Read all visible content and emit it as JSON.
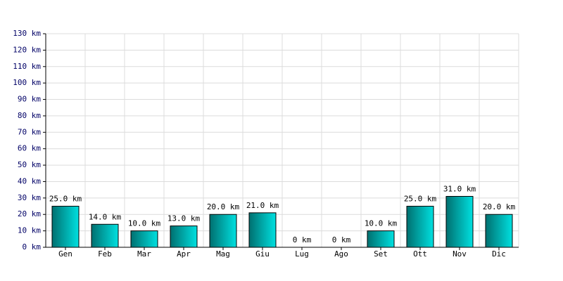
{
  "chart_data": {
    "type": "bar",
    "categories": [
      "Gen",
      "Feb",
      "Mar",
      "Apr",
      "Mag",
      "Giu",
      "Lug",
      "Ago",
      "Set",
      "Ott",
      "Nov",
      "Dic"
    ],
    "values": [
      25,
      14,
      10,
      13,
      20,
      21,
      0,
      0,
      10,
      25,
      31,
      20
    ],
    "value_labels": [
      "25.0 km",
      "14.0 km",
      "10.0 km",
      "13.0 km",
      "20.0 km",
      "21.0 km",
      "0 km",
      "0 km",
      "10.0 km",
      "25.0 km",
      "31.0 km",
      "20.0 km"
    ],
    "color": "#00e0e0",
    "ylim": [
      0,
      130
    ],
    "yticks": [
      {
        "value": 0,
        "label": "0 km"
      },
      {
        "value": 10,
        "label": "10 km"
      },
      {
        "value": 20,
        "label": "20 km"
      },
      {
        "value": 30,
        "label": "30 km"
      },
      {
        "value": 40,
        "label": "40 km"
      },
      {
        "value": 50,
        "label": "50 km"
      },
      {
        "value": 60,
        "label": "60 km"
      },
      {
        "value": 70,
        "label": "70 km"
      },
      {
        "value": 80,
        "label": "80 km"
      },
      {
        "value": 90,
        "label": "90 km"
      },
      {
        "value": 100,
        "label": "100 km"
      },
      {
        "value": 110,
        "label": "110 km"
      },
      {
        "value": 120,
        "label": "120 km"
      },
      {
        "value": 130,
        "label": "130 km"
      }
    ],
    "grid": true
  }
}
